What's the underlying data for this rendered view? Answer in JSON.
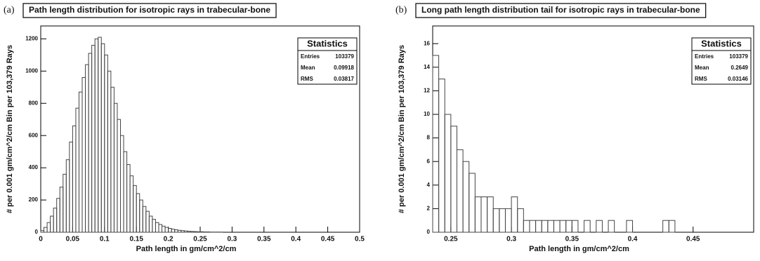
{
  "chart_data": [
    {
      "type": "histogram",
      "panel": "(a)",
      "title": "Path length distribution for isotropic rays in trabecular-bone",
      "x_label": "Path length in gm/cm^2/cm",
      "y_label": "# per 0.001 gm/cm^2/cm Bin per 103,379 Rays",
      "color": "#444444",
      "bins": [
        0,
        0.005,
        0.01,
        0.015,
        0.02,
        0.025,
        0.03,
        0.035,
        0.04,
        0.045,
        0.05,
        0.055,
        0.06,
        0.065,
        0.07,
        0.075,
        0.08,
        0.085,
        0.09,
        0.095,
        0.1,
        0.105,
        0.11,
        0.115,
        0.12,
        0.125,
        0.13,
        0.135,
        0.14,
        0.145,
        0.15,
        0.155,
        0.16,
        0.165,
        0.17,
        0.175,
        0.18,
        0.185,
        0.19,
        0.195,
        0.2,
        0.205,
        0.21,
        0.215,
        0.22,
        0.225,
        0.23,
        0.235,
        0.24,
        0.245,
        0.25,
        0.255,
        0.26,
        0.265,
        0.27,
        0.275,
        0.28,
        0.285,
        0.29,
        0.295,
        0.3
      ],
      "counts": [
        10,
        30,
        60,
        100,
        150,
        210,
        280,
        360,
        450,
        560,
        660,
        770,
        870,
        960,
        1040,
        1110,
        1160,
        1200,
        1210,
        1170,
        1100,
        1000,
        900,
        800,
        700,
        600,
        500,
        420,
        350,
        290,
        240,
        200,
        160,
        130,
        100,
        80,
        60,
        48,
        38,
        30,
        24,
        19,
        15,
        12,
        10,
        8,
        6,
        5,
        4,
        3,
        3,
        2,
        2,
        1,
        1,
        1,
        1,
        0,
        0,
        0
      ],
      "xlim": [
        0,
        0.5
      ],
      "xticks": [
        0,
        0.05,
        0.1,
        0.15,
        0.2,
        0.25,
        0.3,
        0.35,
        0.4,
        0.45,
        0.5
      ],
      "ylim": [
        0,
        1280
      ],
      "yticks": [
        0,
        200,
        400,
        600,
        800,
        1000,
        1200
      ],
      "stats": {
        "title": "Statistics",
        "rows": [
          [
            "Entries",
            103379
          ],
          [
            "Mean",
            0.09918
          ],
          [
            "RMS",
            0.03817
          ]
        ]
      }
    },
    {
      "type": "histogram",
      "panel": "(b)",
      "title": "Long path length distribution tail for isotropic rays in trabecular-bone",
      "x_label": "Path length in gm/cm^2/cm",
      "y_label": "# per 0.001 gm/cm^2/cm Bin per 103,379 Rays",
      "color": "#444444",
      "bins": [
        0.235,
        0.24,
        0.245,
        0.25,
        0.255,
        0.26,
        0.265,
        0.27,
        0.275,
        0.28,
        0.285,
        0.29,
        0.295,
        0.3,
        0.305,
        0.31,
        0.315,
        0.32,
        0.325,
        0.33,
        0.335,
        0.34,
        0.345,
        0.35,
        0.355,
        0.36,
        0.365,
        0.37,
        0.375,
        0.38,
        0.385,
        0.39,
        0.395,
        0.4,
        0.405,
        0.41,
        0.415,
        0.42,
        0.425,
        0.43,
        0.435
      ],
      "counts": [
        15,
        13,
        10,
        9,
        7,
        6,
        5,
        3,
        3,
        3,
        2,
        2,
        2,
        3,
        2,
        1,
        1,
        1,
        1,
        1,
        1,
        1,
        1,
        1,
        0,
        1,
        0,
        1,
        0,
        1,
        0,
        0,
        1,
        0,
        0,
        0,
        0,
        0,
        1,
        1
      ],
      "xlim": [
        0.235,
        0.5
      ],
      "xticks": [
        0.25,
        0.3,
        0.35,
        0.4,
        0.45
      ],
      "ylim": [
        0,
        17.5
      ],
      "yticks": [
        0,
        2,
        4,
        6,
        8,
        10,
        12,
        14,
        16
      ],
      "stats": {
        "title": "Statistics",
        "rows": [
          [
            "Entries",
            103379
          ],
          [
            "Mean",
            0.2649
          ],
          [
            "RMS",
            0.03146
          ]
        ]
      }
    }
  ]
}
